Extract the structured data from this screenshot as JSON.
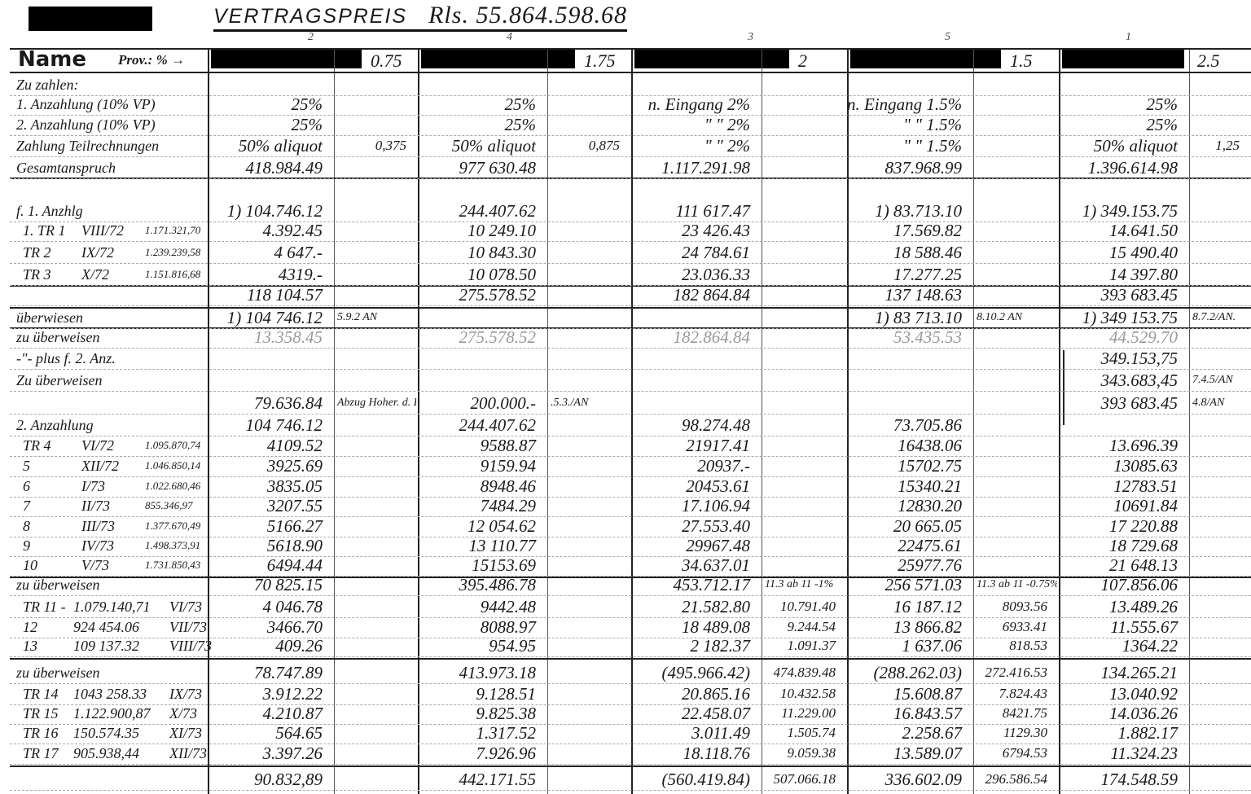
{
  "header": {
    "title_label": "VERTRAGSPREIS",
    "title_amount": "Rls. 55.864.598.68",
    "column_numbers": [
      "2",
      "4",
      "3",
      "5",
      "1"
    ]
  },
  "name_row": {
    "name_label": "Name",
    "prov_label": "Prov.: % →",
    "rates": [
      "0.75",
      "1.75",
      "2",
      "1.5",
      "2.5"
    ]
  },
  "rows": [
    {
      "label": [
        "Zu zahlen:"
      ],
      "cells": [
        "",
        "",
        "",
        "",
        "",
        "",
        "",
        "",
        "",
        ""
      ]
    },
    {
      "label": [
        "1. Anzahlung (10% VP)"
      ],
      "cells": [
        "25%",
        "",
        "25%",
        "",
        "n. Eingang  2%",
        "",
        "n. Eingang  1.5%",
        "",
        "25%",
        ""
      ]
    },
    {
      "label": [
        "2. Anzahlung (10% VP)"
      ],
      "cells": [
        "25%",
        "",
        "25%",
        "",
        "\"   \"   2%",
        "",
        "\"   \"   1.5%",
        "",
        "25%",
        ""
      ]
    },
    {
      "label": [
        "Zahlung Teilrechnungen"
      ],
      "cells": [
        "50% aliquot",
        "0,375",
        "50% aliquot",
        "0,875",
        "\"   \"   2%",
        "",
        "\"   \"   1.5%",
        "",
        "50% aliquot",
        "1,25"
      ]
    },
    {
      "label": [
        "Gesamtanspruch"
      ],
      "cells": [
        "418.984.49",
        "",
        "977 630.48",
        "",
        "1.117.291.98",
        "",
        "837.968.99",
        "",
        "1.396.614.98",
        ""
      ]
    },
    {
      "label": [
        "f. 1. Anzhlg"
      ],
      "cells": [
        "1) 104.746.12",
        "",
        "244.407.62",
        "",
        "111 617.47",
        "",
        "1) 83.713.10",
        "",
        "1) 349.153.75",
        ""
      ]
    },
    {
      "label": [
        "1. TR 1",
        "VIII/72",
        "1.171.321,70"
      ],
      "cells": [
        "4.392.45",
        "",
        "10 249.10",
        "",
        "23 426.43",
        "",
        "17.569.82",
        "",
        "14.641.50",
        ""
      ]
    },
    {
      "label": [
        "TR 2",
        "IX/72",
        "1.239.239,58"
      ],
      "cells": [
        "4 647.-",
        "",
        "10 843.30",
        "",
        "24 784.61",
        "",
        "18 588.46",
        "",
        "15 490.40",
        ""
      ]
    },
    {
      "label": [
        "TR 3",
        "X/72",
        "1.151.816,68"
      ],
      "cells": [
        "4319.-",
        "",
        "10 078.50",
        "",
        "23.036.33",
        "",
        "17.277.25",
        "",
        "14 397.80",
        ""
      ]
    },
    {
      "label": [
        ""
      ],
      "cells": [
        "118 104.57",
        "",
        "275.578.52",
        "",
        "182 864.84",
        "",
        "137 148.63",
        "",
        "393 683.45",
        ""
      ]
    },
    {
      "label": [
        "überwiesen"
      ],
      "cells": [
        "1) 104 746.12",
        "5.9.2 AN",
        "",
        "",
        "",
        "",
        "1) 83 713.10",
        "8.10.2 AN",
        "1) 349 153.75",
        "8.7.2/AN."
      ]
    },
    {
      "label": [
        "zu überweisen"
      ],
      "cells": [
        "13.358.45",
        "",
        "275.578.52",
        "",
        "182.864.84",
        "",
        "53.435.53",
        "",
        "44.529.70",
        ""
      ]
    },
    {
      "label": [
        "-\"- plus f. 2. Anz."
      ],
      "cells": [
        "",
        "",
        "",
        "",
        "",
        "",
        "",
        "",
        "349.153,75",
        ""
      ]
    },
    {
      "label": [
        "Zu überweisen"
      ],
      "cells": [
        "",
        "",
        "",
        "",
        "",
        "",
        "",
        "",
        "343.683,45",
        "7.4.5/AN"
      ]
    },
    {
      "label": [
        ""
      ],
      "cells": [
        "79.636.84",
        "Abzug Hoher. d. Kunden",
        "200.000.-",
        ".5.3./AN",
        "",
        "",
        "",
        "",
        "393 683.45",
        "4.8/AN"
      ]
    },
    {
      "label": [
        "2. Anzahlung"
      ],
      "cells": [
        "104 746.12",
        "",
        "244.407.62",
        "",
        "98.274.48",
        "",
        "73.705.86",
        "",
        "",
        ""
      ]
    },
    {
      "label": [
        "TR 4",
        "VI/72",
        "1.095.870,74"
      ],
      "cells": [
        "4109.52",
        "",
        "9588.87",
        "",
        "21917.41",
        "",
        "16438.06",
        "",
        "13.696.39",
        ""
      ]
    },
    {
      "label": [
        "5",
        "XII/72",
        "1.046.850,14"
      ],
      "cells": [
        "3925.69",
        "",
        "9159.94",
        "",
        "20937.-",
        "",
        "15702.75",
        "",
        "13085.63",
        ""
      ]
    },
    {
      "label": [
        "6",
        "I/73",
        "1.022.680,46"
      ],
      "cells": [
        "3835.05",
        "",
        "8948.46",
        "",
        "20453.61",
        "",
        "15340.21",
        "",
        "12783.51",
        ""
      ]
    },
    {
      "label": [
        "7",
        "II/73",
        "855.346,97"
      ],
      "cells": [
        "3207.55",
        "",
        "7484.29",
        "",
        "17.106.94",
        "",
        "12830.20",
        "",
        "10691.84",
        ""
      ]
    },
    {
      "label": [
        "8",
        "III/73",
        "1.377.670,49"
      ],
      "cells": [
        "5166.27",
        "",
        "12 054.62",
        "",
        "27.553.40",
        "",
        "20 665.05",
        "",
        "17 220.88",
        ""
      ]
    },
    {
      "label": [
        "9",
        "IV/73",
        "1.498.373,91"
      ],
      "cells": [
        "5618.90",
        "",
        "13 110.77",
        "",
        "29967.48",
        "",
        "22475.61",
        "",
        "18 729.68",
        ""
      ]
    },
    {
      "label": [
        "10",
        "V/73",
        "1.731.850,43"
      ],
      "cells": [
        "6494.44",
        "",
        "15153.69",
        "",
        "34.637.01",
        "",
        "25977.76",
        "",
        "21 648.13",
        ""
      ]
    },
    {
      "label": [
        "zu überweisen"
      ],
      "cells": [
        "70 825.15",
        "",
        "395.486.78",
        "",
        "453.712.17",
        "11.3 ab 11 -1%",
        "256 571.03",
        "11.3 ab 11 -0.75%",
        "107.856.06",
        ""
      ]
    },
    {
      "label": [
        "TR 11 -",
        "1.079.140,71",
        "VI/73"
      ],
      "cells": [
        "4 046.78",
        "",
        "9442.48",
        "",
        "21.582.80",
        "10.791.40",
        "16 187.12",
        "8093.56",
        "13.489.26",
        ""
      ]
    },
    {
      "label": [
        "12",
        "924 454.06",
        "VII/73"
      ],
      "cells": [
        "3466.70",
        "",
        "8088.97",
        "",
        "18 489.08",
        "9.244.54",
        "13 866.82",
        "6933.41",
        "11.555.67",
        ""
      ]
    },
    {
      "label": [
        "13",
        "109 137.32",
        "VIII/73"
      ],
      "cells": [
        "409.26",
        "",
        "954.95",
        "",
        "2 182.37",
        "1.091.37",
        "1 637.06",
        "818.53",
        "1364.22",
        ""
      ]
    },
    {
      "label": [
        "zu überweisen"
      ],
      "cells": [
        "78.747.89",
        "",
        "413.973.18",
        "",
        "(495.966.42)",
        "474.839.48",
        "(288.262.03)",
        "272.416.53",
        "134.265.21",
        ""
      ]
    },
    {
      "label": [
        "TR 14",
        "1043 258.33",
        "IX/73"
      ],
      "cells": [
        "3.912.22",
        "",
        "9.128.51",
        "",
        "20.865.16",
        "10.432.58",
        "15.608.87",
        "7.824.43",
        "13.040.92",
        ""
      ]
    },
    {
      "label": [
        "TR 15",
        "1.122.900,87",
        "X/73"
      ],
      "cells": [
        "4.210.87",
        "",
        "9.825.38",
        "",
        "22.458.07",
        "11.229.00",
        "16.843.57",
        "8421.75",
        "14.036.26",
        ""
      ]
    },
    {
      "label": [
        "TR 16",
        "150.574.35",
        "XI/73"
      ],
      "cells": [
        "564.65",
        "",
        "1.317.52",
        "",
        "3.011.49",
        "1.505.74",
        "2.258.67",
        "1129.30",
        "1.882.17",
        ""
      ]
    },
    {
      "label": [
        "TR 17",
        "905.938,44",
        "XII/73"
      ],
      "cells": [
        "3.397.26",
        "",
        "7.926.96",
        "",
        "18.118.76",
        "9.059.38",
        "13.589.07",
        "6794.53",
        "11.324.23",
        ""
      ]
    },
    {
      "label": [
        ""
      ],
      "cells": [
        "90.832,89",
        "",
        "442.171.55",
        "",
        "(560.419.84)",
        "507.066.18",
        "336.602.09",
        "296.586.54",
        "174.548.59",
        ""
      ]
    }
  ]
}
